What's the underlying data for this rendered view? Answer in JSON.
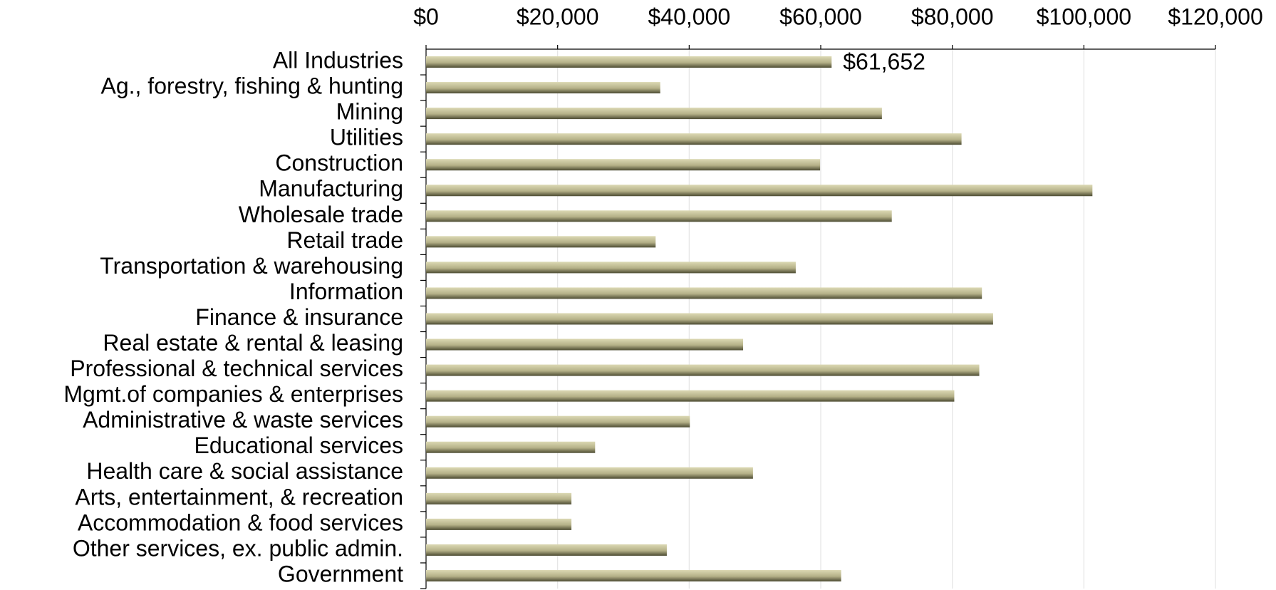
{
  "chart_data": {
    "type": "bar",
    "orientation": "horizontal",
    "categories": [
      "All Industries",
      "Ag., forestry, fishing & hunting",
      "Mining",
      "Utilities",
      "Construction",
      "Manufacturing",
      "Wholesale trade",
      "Retail trade",
      "Transportation & warehousing",
      "Information",
      "Finance & insurance",
      "Real estate & rental & leasing",
      "Professional & technical services",
      "Mgmt.of companies & enterprises",
      "Administrative & waste services",
      "Educational services",
      "Health care & social assistance",
      "Arts, entertainment, & recreation",
      "Accommodation & food services",
      "Other services, ex. public admin.",
      "Government"
    ],
    "values": [
      61652,
      35600,
      69300,
      81400,
      59900,
      101300,
      70800,
      34900,
      56200,
      84500,
      86200,
      48200,
      84100,
      80300,
      40100,
      25700,
      49700,
      22100,
      22100,
      36600,
      63100
    ],
    "value_labels": [
      "$61,652",
      null,
      null,
      null,
      null,
      null,
      null,
      null,
      null,
      null,
      null,
      null,
      null,
      null,
      null,
      null,
      null,
      null,
      null,
      null,
      null
    ],
    "color": "#b5b188",
    "xlim": [
      0,
      120000
    ],
    "xticks": [
      {
        "value": 0,
        "label": "$0"
      },
      {
        "value": 20000,
        "label": "$20,000"
      },
      {
        "value": 40000,
        "label": "$40,000"
      },
      {
        "value": 60000,
        "label": "$60,000"
      },
      {
        "value": 80000,
        "label": "$80,000"
      },
      {
        "value": 100000,
        "label": "$100,000"
      },
      {
        "value": 120000,
        "label": "$120,000"
      }
    ],
    "grid": true
  }
}
